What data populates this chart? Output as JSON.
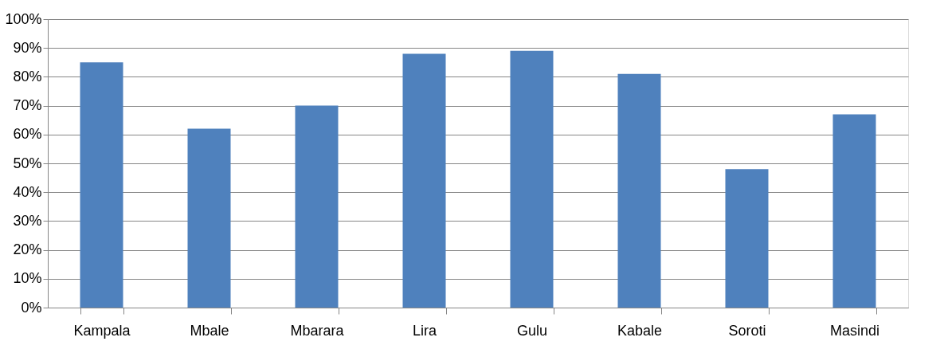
{
  "chart_data": {
    "type": "bar",
    "categories": [
      "Kampala",
      "Mbale",
      "Mbarara",
      "Lira",
      "Gulu",
      "Kabale",
      "Soroti",
      "Masindi"
    ],
    "values": [
      85,
      62,
      70,
      88,
      89,
      81,
      48,
      67
    ],
    "color": "#4f81bd",
    "ylim": [
      0,
      100
    ],
    "yticks": [
      {
        "value": 0,
        "label": "0%"
      },
      {
        "value": 10,
        "label": "10%"
      },
      {
        "value": 20,
        "label": "20%"
      },
      {
        "value": 30,
        "label": "30%"
      },
      {
        "value": 40,
        "label": "40%"
      },
      {
        "value": 50,
        "label": "50%"
      },
      {
        "value": 60,
        "label": "60%"
      },
      {
        "value": 70,
        "label": "70%"
      },
      {
        "value": 80,
        "label": "80%"
      },
      {
        "value": 90,
        "label": "90%"
      },
      {
        "value": 100,
        "label": "100%"
      }
    ],
    "grid": "y"
  }
}
